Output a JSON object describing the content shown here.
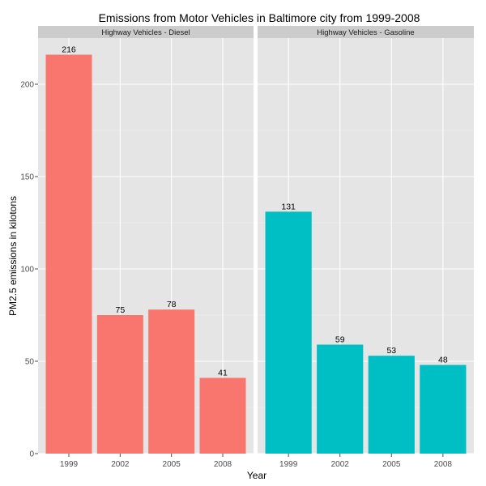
{
  "chart_data": {
    "type": "bar",
    "title": "Emissions from Motor Vehicles in Baltimore city from 1999-2008",
    "xlabel": "Year",
    "ylabel": "PM2.5 emissions in kilotons",
    "ylim": [
      0,
      225
    ],
    "yticks": [
      0,
      50,
      100,
      150,
      200
    ],
    "grid": true,
    "legend": "none",
    "categories": [
      "1999",
      "2002",
      "2005",
      "2008"
    ],
    "panels": [
      {
        "name": "Highway Vehicles - Diesel",
        "color": "#F8766D",
        "values": [
          216,
          75,
          78,
          41
        ],
        "labels": [
          "216",
          "75",
          "78",
          "41"
        ]
      },
      {
        "name": "Highway Vehicles - Gasoline",
        "color": "#00BFC4",
        "values": [
          131,
          59,
          53,
          48
        ],
        "labels": [
          "131",
          "59",
          "53",
          "48"
        ]
      }
    ]
  }
}
